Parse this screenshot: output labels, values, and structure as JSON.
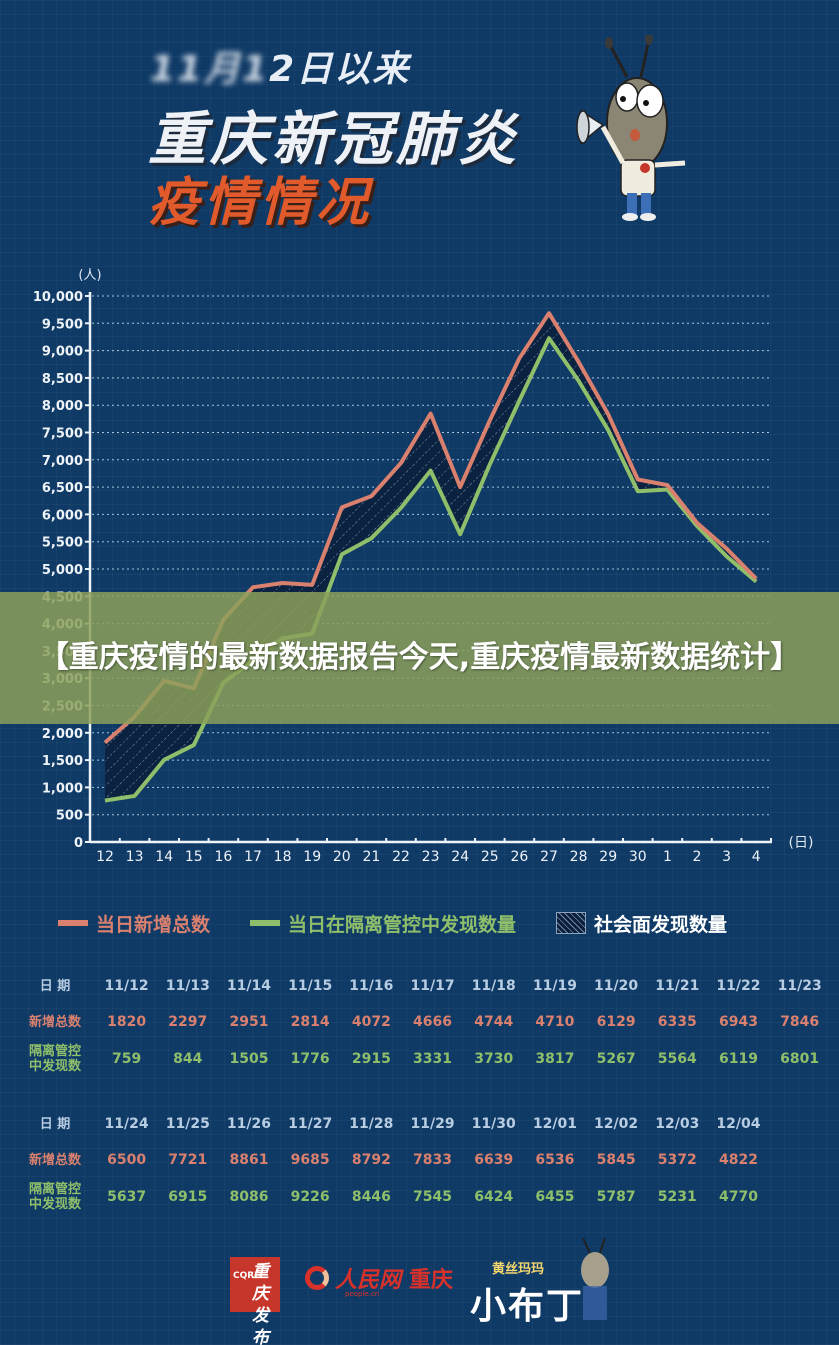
{
  "header": {
    "line1_blurred": "11月1",
    "line1": "2日以来",
    "line2": "重庆新冠肺炎",
    "line3": "疫情情况"
  },
  "banner": {
    "text": "【重庆疫情的最新数据报告今天,重庆疫情最新数据统计】"
  },
  "legend": {
    "items": [
      {
        "label": "当日新增总数",
        "color": "#d9806e",
        "type": "line"
      },
      {
        "label": "当日在隔离管控中发现数量",
        "color": "#8fbf6a",
        "type": "line"
      },
      {
        "label": "社会面发现数量",
        "color": "#ffffff",
        "type": "hatch"
      }
    ]
  },
  "table1": {
    "row_labels": {
      "date": "日 期",
      "total": "新增总数",
      "quarantine": "隔离管控中发现数"
    },
    "dates": [
      "11/12",
      "11/13",
      "11/14",
      "11/15",
      "11/16",
      "11/17",
      "11/18",
      "11/19",
      "11/20",
      "11/21",
      "11/22",
      "11/23"
    ],
    "total": [
      "1820",
      "2297",
      "2951",
      "2814",
      "4072",
      "4666",
      "4744",
      "4710",
      "6129",
      "6335",
      "6943",
      "7846"
    ],
    "quarantine": [
      "759",
      "844",
      "1505",
      "1776",
      "2915",
      "3331",
      "3730",
      "3817",
      "5267",
      "5564",
      "6119",
      "6801"
    ]
  },
  "table2": {
    "row_labels": {
      "date": "日 期",
      "total": "新增总数",
      "quarantine": "隔离管控中发现数"
    },
    "dates": [
      "11/24",
      "11/25",
      "11/26",
      "11/27",
      "11/28",
      "11/29",
      "11/30",
      "12/01",
      "12/02",
      "12/03",
      "12/04"
    ],
    "total": [
      "6500",
      "7721",
      "8861",
      "9685",
      "8792",
      "7833",
      "6639",
      "6536",
      "5845",
      "5372",
      "4822"
    ],
    "quarantine": [
      "5637",
      "6915",
      "8086",
      "9226",
      "8446",
      "7545",
      "6424",
      "6455",
      "5787",
      "5231",
      "4770"
    ]
  },
  "footer": {
    "logo1": "重庆发布",
    "logo1_letters": "CQRE",
    "logo2_main": "人民网",
    "logo2_sub": "people.cn",
    "logo2_city": "重庆",
    "logo3_small": "黄丝玛玛",
    "logo3_big": "小布丁"
  },
  "chart_data": {
    "type": "line",
    "title": "重庆新冠肺炎疫情情况",
    "xlabel": "(日)",
    "ylabel": "(人)",
    "ylim": [
      0,
      10000
    ],
    "yticks": [
      0,
      500,
      1000,
      1500,
      2000,
      2500,
      3000,
      3500,
      4000,
      4500,
      5000,
      5500,
      6000,
      6500,
      7000,
      7500,
      8000,
      8500,
      9000,
      9500,
      10000
    ],
    "ytick_labels": [
      "0",
      "500",
      "1,000",
      "1,500",
      "2,000",
      "2,500",
      "3,000",
      "3,500",
      "4,000",
      "4,500",
      "5,000",
      "5,500",
      "6,000",
      "6,500",
      "7,000",
      "7,500",
      "8,000",
      "8,500",
      "9,000",
      "9,500",
      "10,000"
    ],
    "categories": [
      "12",
      "13",
      "14",
      "15",
      "16",
      "17",
      "18",
      "19",
      "20",
      "21",
      "22",
      "23",
      "24",
      "25",
      "26",
      "27",
      "28",
      "29",
      "30",
      "1",
      "2",
      "3",
      "4"
    ],
    "grid": true,
    "legend_position": "bottom",
    "series": [
      {
        "name": "当日新增总数",
        "color": "#d9806e",
        "values": [
          1820,
          2297,
          2951,
          2814,
          4072,
          4666,
          4744,
          4710,
          6129,
          6335,
          6943,
          7846,
          6500,
          7721,
          8861,
          9685,
          8792,
          7833,
          6639,
          6536,
          5845,
          5372,
          4822
        ]
      },
      {
        "name": "当日在隔离管控中发现数量",
        "color": "#8fbf6a",
        "values": [
          759,
          844,
          1505,
          1776,
          2915,
          3331,
          3730,
          3817,
          5267,
          5564,
          6119,
          6801,
          5637,
          6915,
          8086,
          9226,
          8446,
          7545,
          6424,
          6455,
          5787,
          5231,
          4770
        ]
      }
    ],
    "shaded_area": {
      "name": "社会面发现数量",
      "between": [
        "当日新增总数",
        "当日在隔离管控中发现数量"
      ],
      "style": "hatch"
    }
  }
}
